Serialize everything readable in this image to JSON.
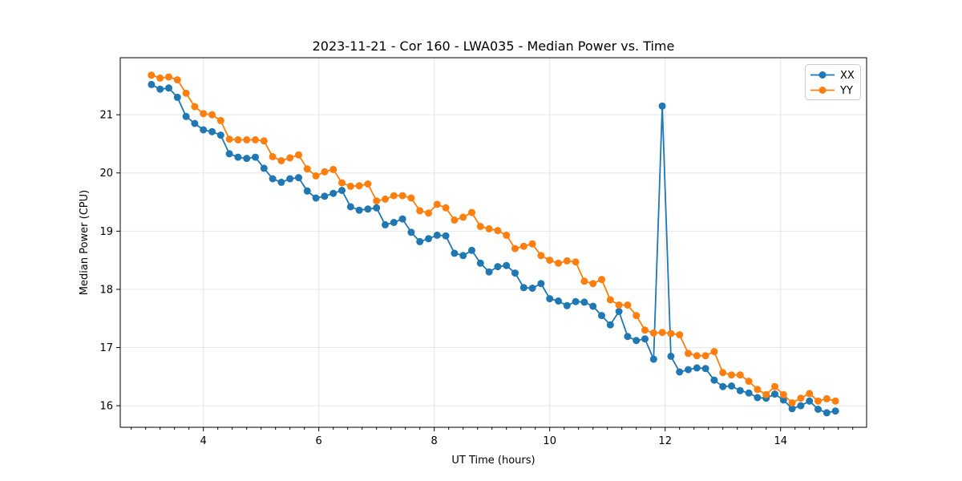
{
  "chart_data": {
    "type": "line",
    "title": "2023-11-21 - Cor 160 - LWA035 - Median Power vs. Time",
    "xlabel": "UT Time (hours)",
    "ylabel": "Median Power (CPU)",
    "xlim": [
      2.56,
      15.49
    ],
    "ylim": [
      15.63,
      21.98
    ],
    "xticks": [
      4,
      6,
      8,
      10,
      12,
      14
    ],
    "yticks": [
      16,
      17,
      18,
      19,
      20,
      21
    ],
    "x_minor_tick_step": 0.25,
    "grid": true,
    "grid_color": "#e6e6e6",
    "legend_position": "upper right",
    "marker": "o",
    "x": [
      3.1,
      3.25,
      3.4,
      3.55,
      3.7,
      3.85,
      4.0,
      4.15,
      4.3,
      4.45,
      4.6,
      4.75,
      4.9,
      5.05,
      5.2,
      5.35,
      5.5,
      5.65,
      5.8,
      5.95,
      6.1,
      6.25,
      6.4,
      6.55,
      6.7,
      6.85,
      7.0,
      7.15,
      7.3,
      7.45,
      7.6,
      7.75,
      7.9,
      8.05,
      8.2,
      8.35,
      8.5,
      8.65,
      8.8,
      8.95,
      9.1,
      9.25,
      9.4,
      9.55,
      9.7,
      9.85,
      10.0,
      10.15,
      10.3,
      10.45,
      10.6,
      10.75,
      10.9,
      11.05,
      11.2,
      11.35,
      11.5,
      11.65,
      11.8,
      11.95,
      12.1,
      12.25,
      12.4,
      12.55,
      12.7,
      12.85,
      13.0,
      13.15,
      13.3,
      13.45,
      13.6,
      13.75,
      13.9,
      14.05,
      14.2,
      14.35,
      14.5,
      14.65,
      14.8,
      14.95
    ],
    "series": [
      {
        "name": "XX",
        "color": "#1f77b4",
        "values": [
          21.52,
          21.44,
          21.46,
          21.3,
          20.97,
          20.85,
          20.74,
          20.71,
          20.65,
          20.33,
          20.27,
          20.25,
          20.27,
          20.08,
          19.9,
          19.84,
          19.9,
          19.92,
          19.69,
          19.57,
          19.6,
          19.65,
          19.7,
          19.42,
          19.36,
          19.38,
          19.4,
          19.11,
          19.15,
          19.21,
          18.98,
          18.82,
          18.87,
          18.93,
          18.92,
          18.62,
          18.58,
          18.67,
          18.45,
          18.3,
          18.39,
          18.41,
          18.28,
          18.03,
          18.02,
          18.1,
          17.84,
          17.8,
          17.72,
          17.79,
          17.78,
          17.71,
          17.55,
          17.39,
          17.62,
          17.19,
          17.12,
          17.15,
          16.8,
          21.15,
          16.85,
          16.58,
          16.62,
          16.65,
          16.64,
          16.44,
          16.33,
          16.34,
          16.26,
          16.22,
          16.14,
          16.13,
          16.2,
          16.1,
          15.95,
          16.0,
          16.08,
          15.94,
          15.88,
          15.91
        ]
      },
      {
        "name": "YY",
        "color": "#ff7f0e",
        "values": [
          21.68,
          21.63,
          21.65,
          21.6,
          21.37,
          21.14,
          21.02,
          21.0,
          20.9,
          20.58,
          20.57,
          20.57,
          20.57,
          20.55,
          20.28,
          20.21,
          20.26,
          20.31,
          20.07,
          19.95,
          20.02,
          20.06,
          19.83,
          19.77,
          19.78,
          19.81,
          19.52,
          19.55,
          19.61,
          19.61,
          19.57,
          19.35,
          19.31,
          19.46,
          19.4,
          19.19,
          19.24,
          19.32,
          19.08,
          19.04,
          19.01,
          18.93,
          18.7,
          18.74,
          18.78,
          18.58,
          18.5,
          18.45,
          18.49,
          18.47,
          18.14,
          18.1,
          18.17,
          17.82,
          17.73,
          17.73,
          17.55,
          17.3,
          17.25,
          17.26,
          17.24,
          17.22,
          16.9,
          16.86,
          16.86,
          16.93,
          16.57,
          16.53,
          16.53,
          16.42,
          16.28,
          16.19,
          16.33,
          16.19,
          16.05,
          16.13,
          16.21,
          16.08,
          16.12,
          16.08
        ]
      }
    ]
  }
}
